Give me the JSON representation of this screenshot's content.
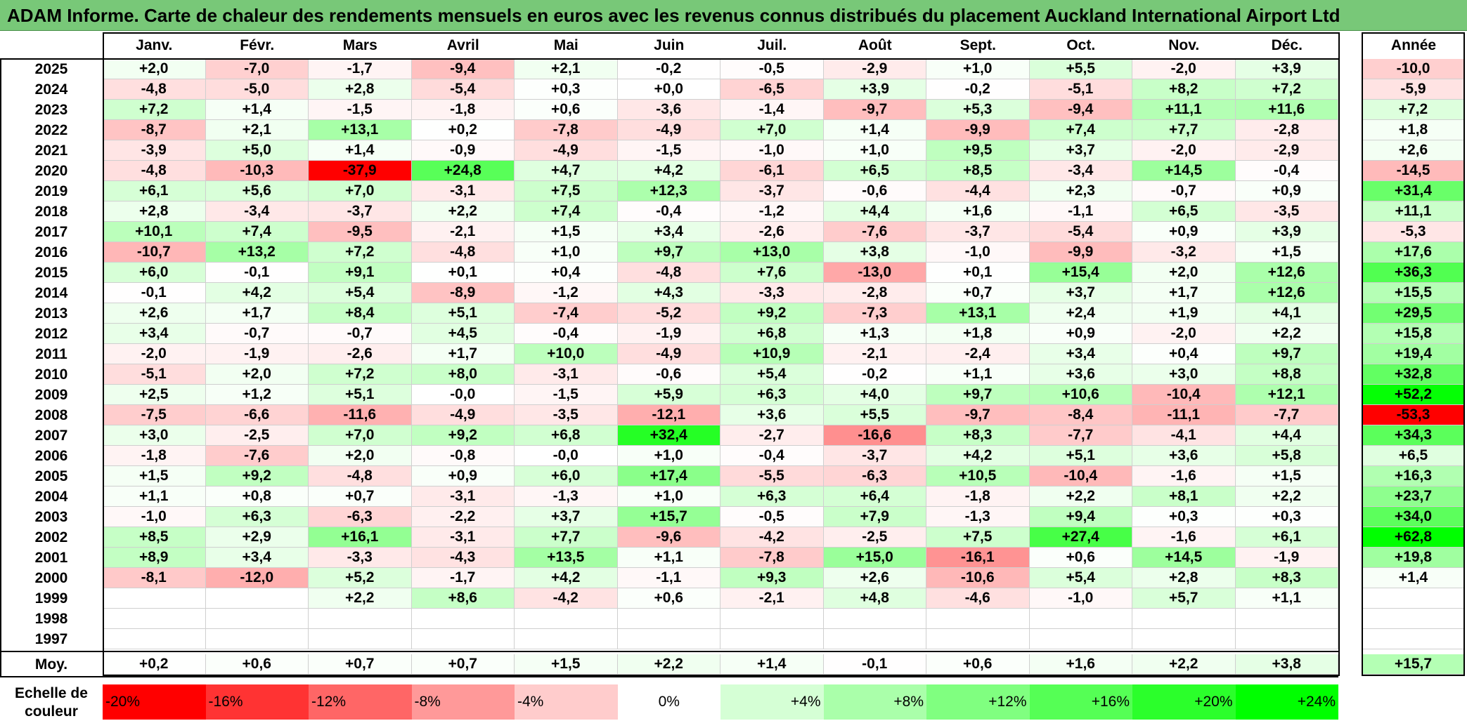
{
  "title": "ADAM Informe. Carte de chaleur des rendements mensuels en euros avec les revenus connus distribués du placement Auckland International Airport Ltd",
  "chart_data": {
    "type": "heatmap",
    "columns": [
      "Janv.",
      "Févr.",
      "Mars",
      "Avril",
      "Mai",
      "Juin",
      "Juil.",
      "Août",
      "Sept.",
      "Oct.",
      "Nov.",
      "Déc."
    ],
    "year_column": "Année",
    "rows": [
      {
        "year": "2025",
        "months": [
          "+2,0",
          "-7,0",
          "-1,7",
          "-9,4",
          "+2,1",
          "-0,2",
          "-0,5",
          "-2,9",
          "+1,0",
          "+5,5",
          "-2,0",
          "+3,9"
        ],
        "annual": "-10,0"
      },
      {
        "year": "2024",
        "months": [
          "-4,8",
          "-5,0",
          "+2,8",
          "-5,4",
          "+0,3",
          "+0,0",
          "-6,5",
          "+3,9",
          "-0,2",
          "-5,1",
          "+8,2",
          "+7,2"
        ],
        "annual": "-5,9"
      },
      {
        "year": "2023",
        "months": [
          "+7,2",
          "+1,4",
          "-1,5",
          "-1,8",
          "+0,6",
          "-3,6",
          "-1,4",
          "-9,7",
          "+5,3",
          "-9,4",
          "+11,1",
          "+11,6"
        ],
        "annual": "+7,2"
      },
      {
        "year": "2022",
        "months": [
          "-8,7",
          "+2,1",
          "+13,1",
          "+0,2",
          "-7,8",
          "-4,9",
          "+7,0",
          "+1,4",
          "-9,9",
          "+7,4",
          "+7,7",
          "-2,8"
        ],
        "annual": "+1,8"
      },
      {
        "year": "2021",
        "months": [
          "-3,9",
          "+5,0",
          "+1,4",
          "-0,9",
          "-4,9",
          "-1,5",
          "-1,0",
          "+1,0",
          "+9,5",
          "+3,7",
          "-2,0",
          "-2,9"
        ],
        "annual": "+2,6"
      },
      {
        "year": "2020",
        "months": [
          "-4,8",
          "-10,3",
          "-37,9",
          "+24,8",
          "+4,7",
          "+4,2",
          "-6,1",
          "+6,5",
          "+8,5",
          "-3,4",
          "+14,5",
          "-0,4"
        ],
        "annual": "-14,5"
      },
      {
        "year": "2019",
        "months": [
          "+6,1",
          "+5,6",
          "+7,0",
          "-3,1",
          "+7,5",
          "+12,3",
          "-3,7",
          "-0,6",
          "-4,4",
          "+2,3",
          "-0,7",
          "+0,9"
        ],
        "annual": "+31,4"
      },
      {
        "year": "2018",
        "months": [
          "+2,8",
          "-3,4",
          "-3,7",
          "+2,2",
          "+7,4",
          "-0,4",
          "-1,2",
          "+4,4",
          "+1,6",
          "-1,1",
          "+6,5",
          "-3,5"
        ],
        "annual": "+11,1"
      },
      {
        "year": "2017",
        "months": [
          "+10,1",
          "+7,4",
          "-9,5",
          "-2,1",
          "+1,5",
          "+3,4",
          "-2,6",
          "-7,6",
          "-3,7",
          "-5,4",
          "+0,9",
          "+3,9"
        ],
        "annual": "-5,3"
      },
      {
        "year": "2016",
        "months": [
          "-10,7",
          "+13,2",
          "+7,2",
          "-4,8",
          "+1,0",
          "+9,7",
          "+13,0",
          "+3,8",
          "-1,0",
          "-9,9",
          "-3,2",
          "+1,5"
        ],
        "annual": "+17,6"
      },
      {
        "year": "2015",
        "months": [
          "+6,0",
          "-0,1",
          "+9,1",
          "+0,1",
          "+0,4",
          "-4,8",
          "+7,6",
          "-13,0",
          "+0,1",
          "+15,4",
          "+2,0",
          "+12,6"
        ],
        "annual": "+36,3"
      },
      {
        "year": "2014",
        "months": [
          "-0,1",
          "+4,2",
          "+5,4",
          "-8,9",
          "-1,2",
          "+4,3",
          "-3,3",
          "-2,8",
          "+0,7",
          "+3,7",
          "+1,7",
          "+12,6"
        ],
        "annual": "+15,5"
      },
      {
        "year": "2013",
        "months": [
          "+2,6",
          "+1,7",
          "+8,4",
          "+5,1",
          "-7,4",
          "-5,2",
          "+9,2",
          "-7,3",
          "+13,1",
          "+2,4",
          "+1,9",
          "+4,1"
        ],
        "annual": "+29,5"
      },
      {
        "year": "2012",
        "months": [
          "+3,4",
          "-0,7",
          "-0,7",
          "+4,5",
          "-0,4",
          "-1,9",
          "+6,8",
          "+1,3",
          "+1,8",
          "+0,9",
          "-2,0",
          "+2,2"
        ],
        "annual": "+15,8"
      },
      {
        "year": "2011",
        "months": [
          "-2,0",
          "-1,9",
          "-2,6",
          "+1,7",
          "+10,0",
          "-4,9",
          "+10,9",
          "-2,1",
          "-2,4",
          "+3,4",
          "+0,4",
          "+9,7"
        ],
        "annual": "+19,4"
      },
      {
        "year": "2010",
        "months": [
          "-5,1",
          "+2,0",
          "+7,2",
          "+8,0",
          "-3,1",
          "-0,6",
          "+5,4",
          "-0,2",
          "+1,1",
          "+3,6",
          "+3,0",
          "+8,8"
        ],
        "annual": "+32,8"
      },
      {
        "year": "2009",
        "months": [
          "+2,5",
          "+1,2",
          "+5,1",
          "-0,0",
          "-1,5",
          "+5,9",
          "+6,3",
          "+4,0",
          "+9,7",
          "+10,6",
          "-10,4",
          "+12,1"
        ],
        "annual": "+52,2"
      },
      {
        "year": "2008",
        "months": [
          "-7,5",
          "-6,6",
          "-11,6",
          "-4,9",
          "-3,5",
          "-12,1",
          "+3,6",
          "+5,5",
          "-9,7",
          "-8,4",
          "-11,1",
          "-7,7"
        ],
        "annual": "-53,3"
      },
      {
        "year": "2007",
        "months": [
          "+3,0",
          "-2,5",
          "+7,0",
          "+9,2",
          "+6,8",
          "+32,4",
          "-2,7",
          "-16,6",
          "+8,3",
          "-7,7",
          "-4,1",
          "+4,4"
        ],
        "annual": "+34,3"
      },
      {
        "year": "2006",
        "months": [
          "-1,8",
          "-7,6",
          "+2,0",
          "-0,8",
          "-0,0",
          "+1,0",
          "-0,4",
          "-3,7",
          "+4,2",
          "+5,1",
          "+3,6",
          "+5,8"
        ],
        "annual": "+6,5"
      },
      {
        "year": "2005",
        "months": [
          "+1,5",
          "+9,2",
          "-4,8",
          "+0,9",
          "+6,0",
          "+17,4",
          "-5,5",
          "-6,3",
          "+10,5",
          "-10,4",
          "-1,6",
          "+1,5"
        ],
        "annual": "+16,3"
      },
      {
        "year": "2004",
        "months": [
          "+1,1",
          "+0,8",
          "+0,7",
          "-3,1",
          "-1,3",
          "+1,0",
          "+6,3",
          "+6,4",
          "-1,8",
          "+2,2",
          "+8,1",
          "+2,2"
        ],
        "annual": "+23,7"
      },
      {
        "year": "2003",
        "months": [
          "-1,0",
          "+6,3",
          "-6,3",
          "-2,2",
          "+3,7",
          "+15,7",
          "-0,5",
          "+7,9",
          "-1,3",
          "+9,4",
          "+0,3",
          "+0,3"
        ],
        "annual": "+34,0"
      },
      {
        "year": "2002",
        "months": [
          "+8,5",
          "+2,9",
          "+16,1",
          "-3,1",
          "+7,7",
          "-9,6",
          "-4,2",
          "-2,5",
          "+7,5",
          "+27,4",
          "-1,6",
          "+6,1"
        ],
        "annual": "+62,8"
      },
      {
        "year": "2001",
        "months": [
          "+8,9",
          "+3,4",
          "-3,3",
          "-4,3",
          "+13,5",
          "+1,1",
          "-7,8",
          "+15,0",
          "-16,1",
          "+0,6",
          "+14,5",
          "-1,9"
        ],
        "annual": "+19,8"
      },
      {
        "year": "2000",
        "months": [
          "-8,1",
          "-12,0",
          "+5,2",
          "-1,7",
          "+4,2",
          "-1,1",
          "+9,3",
          "+2,6",
          "-10,6",
          "+5,4",
          "+2,8",
          "+8,3"
        ],
        "annual": "+1,4"
      },
      {
        "year": "1999",
        "months": [
          "",
          "",
          "+2,2",
          "+8,6",
          "-4,2",
          "+0,6",
          "-2,1",
          "+4,8",
          "-4,6",
          "-1,0",
          "+5,7",
          "+1,1"
        ],
        "annual": ""
      },
      {
        "year": "1998",
        "months": [
          "",
          "",
          "",
          "",
          "",
          "",
          "",
          "",
          "",
          "",
          "",
          ""
        ],
        "annual": ""
      },
      {
        "year": "1997",
        "months": [
          "",
          "",
          "",
          "",
          "",
          "",
          "",
          "",
          "",
          "",
          "",
          ""
        ],
        "annual": ""
      }
    ],
    "average": {
      "label": "Moy.",
      "months": [
        "+0,2",
        "+0,6",
        "+0,7",
        "+0,7",
        "+1,5",
        "+2,2",
        "+1,4",
        "-0,1",
        "+0,6",
        "+1,6",
        "+2,2",
        "+3,8"
      ],
      "annual": "+15,7"
    },
    "color_scale": {
      "label": "Echelle de couleur",
      "steps": [
        "-20%",
        "-16%",
        "-12%",
        "-8%",
        "-4%",
        "0%",
        "+4%",
        "+8%",
        "+12%",
        "+16%",
        "+20%",
        "+24%"
      ],
      "negative_color": "#ff0000",
      "positive_color": "#00ff00",
      "neutral_color": "#ffffff"
    }
  }
}
